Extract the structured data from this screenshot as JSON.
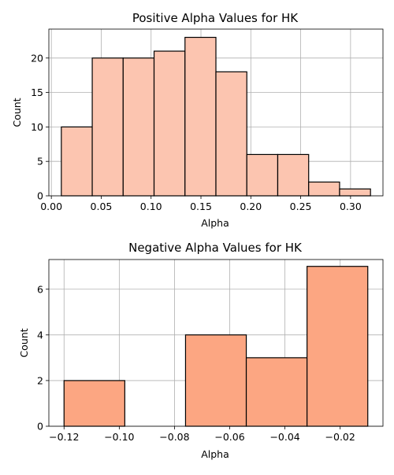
{
  "chart_data": [
    {
      "type": "bar",
      "title": "Positive Alpha Values for HK",
      "xlabel": "Alpha",
      "ylabel": "Count",
      "xlim": [
        -0.0025,
        0.3325
      ],
      "ylim": [
        0,
        24.2
      ],
      "x_ticks": [
        0.0,
        0.05,
        0.1,
        0.15,
        0.2,
        0.25,
        0.3
      ],
      "x_tick_labels": [
        "0.00",
        "0.05",
        "0.10",
        "0.15",
        "0.20",
        "0.25",
        "0.30"
      ],
      "y_ticks": [
        0,
        5,
        10,
        15,
        20
      ],
      "y_tick_labels": [
        "0",
        "5",
        "10",
        "15",
        "20"
      ],
      "bin_edges": [
        0.01,
        0.041,
        0.072,
        0.103,
        0.134,
        0.165,
        0.196,
        0.227,
        0.258,
        0.289,
        0.32
      ],
      "values": [
        10,
        20,
        20,
        21,
        23,
        18,
        6,
        6,
        2,
        1
      ],
      "grid": true,
      "color": "#fcc5b0"
    },
    {
      "type": "bar",
      "title": "Negative Alpha Values for HK",
      "xlabel": "Alpha",
      "ylabel": "Count",
      "xlim": [
        -0.1255,
        -0.0045
      ],
      "ylim": [
        0,
        7.3
      ],
      "x_ticks": [
        -0.12,
        -0.1,
        -0.08,
        -0.06,
        -0.04,
        -0.02
      ],
      "x_tick_labels": [
        "−0.12",
        "−0.10",
        "−0.08",
        "−0.06",
        "−0.04",
        "−0.02"
      ],
      "y_ticks": [
        0,
        2,
        4,
        6
      ],
      "y_tick_labels": [
        "0",
        "2",
        "4",
        "6"
      ],
      "bin_edges": [
        -0.12,
        -0.098,
        -0.076,
        -0.054,
        -0.032,
        -0.01
      ],
      "values": [
        2,
        0,
        4,
        3,
        7
      ],
      "grid": true,
      "color": "#fca682"
    }
  ]
}
